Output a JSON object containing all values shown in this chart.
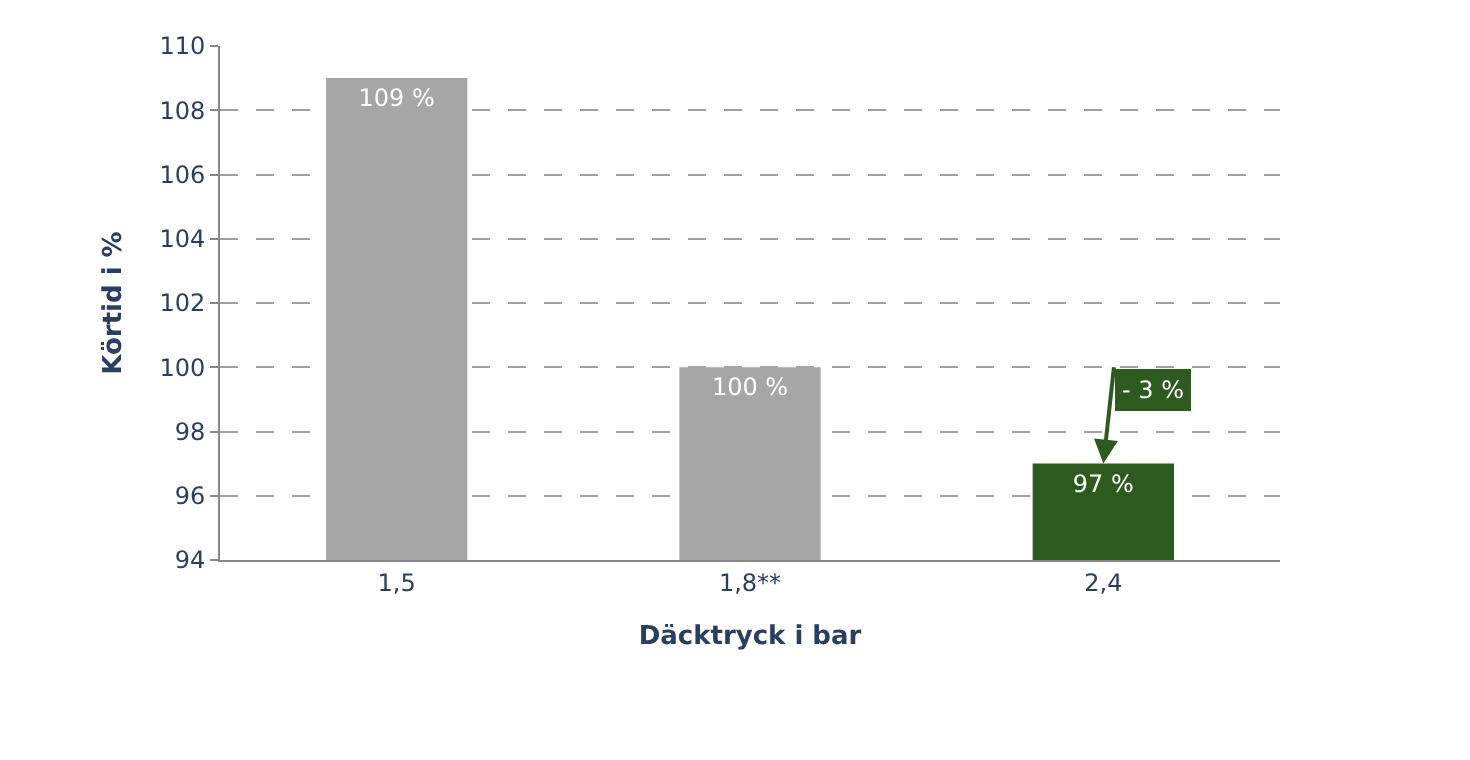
{
  "chart_data": {
    "type": "bar",
    "xlabel": "Däcktryck i bar",
    "ylabel": "Körtid i %",
    "categories": [
      "1,5",
      "1,8**",
      "2,4"
    ],
    "values": [
      109,
      100,
      97
    ],
    "colors": [
      "#a6a6a6",
      "#a6a6a6",
      "#2d5a1f"
    ],
    "value_labels": [
      "109 %",
      "100 %",
      "97 %"
    ],
    "ylim": [
      94,
      110
    ],
    "yticks": [
      94,
      96,
      98,
      100,
      102,
      104,
      106,
      108,
      110
    ],
    "grid": "y",
    "annotations": [
      {
        "text": "- 3 %",
        "x": "2,4",
        "y": 97
      }
    ]
  }
}
